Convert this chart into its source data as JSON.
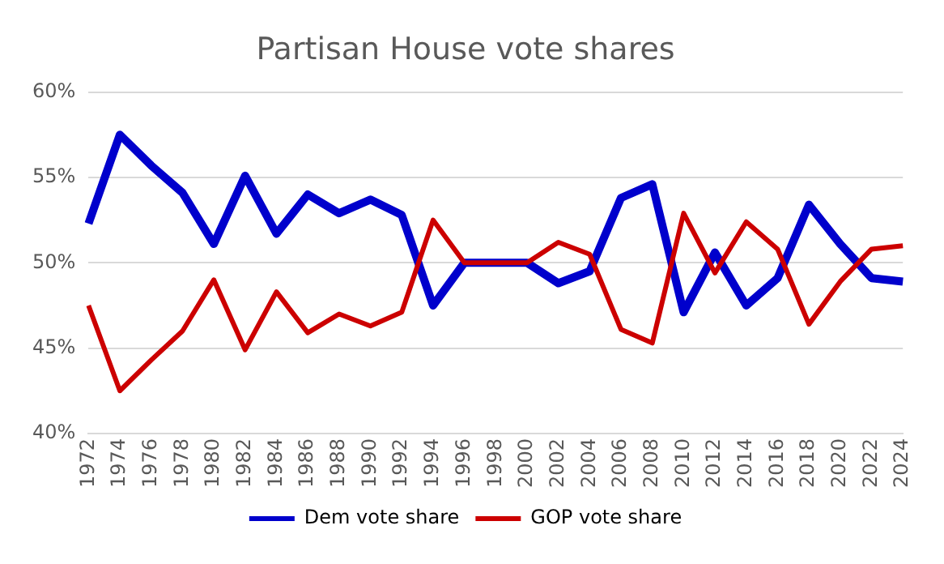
{
  "chart_data": {
    "type": "line",
    "title": "Partisan House vote shares",
    "categories": [
      "1972",
      "1974",
      "1976",
      "1978",
      "1980",
      "1982",
      "1984",
      "1986",
      "1988",
      "1990",
      "1992",
      "1994",
      "1996",
      "1998",
      "2000",
      "2002",
      "2004",
      "2006",
      "2008",
      "2010",
      "2012",
      "2014",
      "2016",
      "2018",
      "2020",
      "2022",
      "2024"
    ],
    "series": [
      {
        "name": "Dem vote share",
        "color": "#0000cc",
        "values": [
          52.3,
          57.5,
          55.7,
          54.1,
          51.1,
          55.1,
          51.7,
          54.0,
          52.9,
          53.7,
          52.8,
          47.5,
          50.0,
          50.0,
          50.0,
          48.8,
          49.5,
          53.8,
          54.6,
          47.1,
          50.6,
          47.5,
          49.1,
          53.4,
          51.1,
          49.1,
          48.9
        ]
      },
      {
        "name": "GOP vote share",
        "color": "#cc0000",
        "values": [
          47.5,
          42.5,
          44.3,
          46.0,
          49.0,
          44.9,
          48.3,
          45.9,
          47.0,
          46.3,
          47.1,
          52.5,
          50.0,
          50.0,
          50.0,
          51.2,
          50.5,
          46.1,
          45.3,
          52.9,
          49.4,
          52.4,
          50.8,
          46.4,
          48.9,
          50.8,
          51.0
        ]
      }
    ],
    "ylim": [
      40,
      60
    ],
    "yticks": [
      {
        "value": 40,
        "label": "40%"
      },
      {
        "value": 45,
        "label": "45%"
      },
      {
        "value": 50,
        "label": "50%"
      },
      {
        "value": 55,
        "label": "55%"
      },
      {
        "value": 60,
        "label": "60%"
      }
    ],
    "grid": "y",
    "legend": "bottom",
    "marker": "none",
    "line_style": "solid"
  }
}
